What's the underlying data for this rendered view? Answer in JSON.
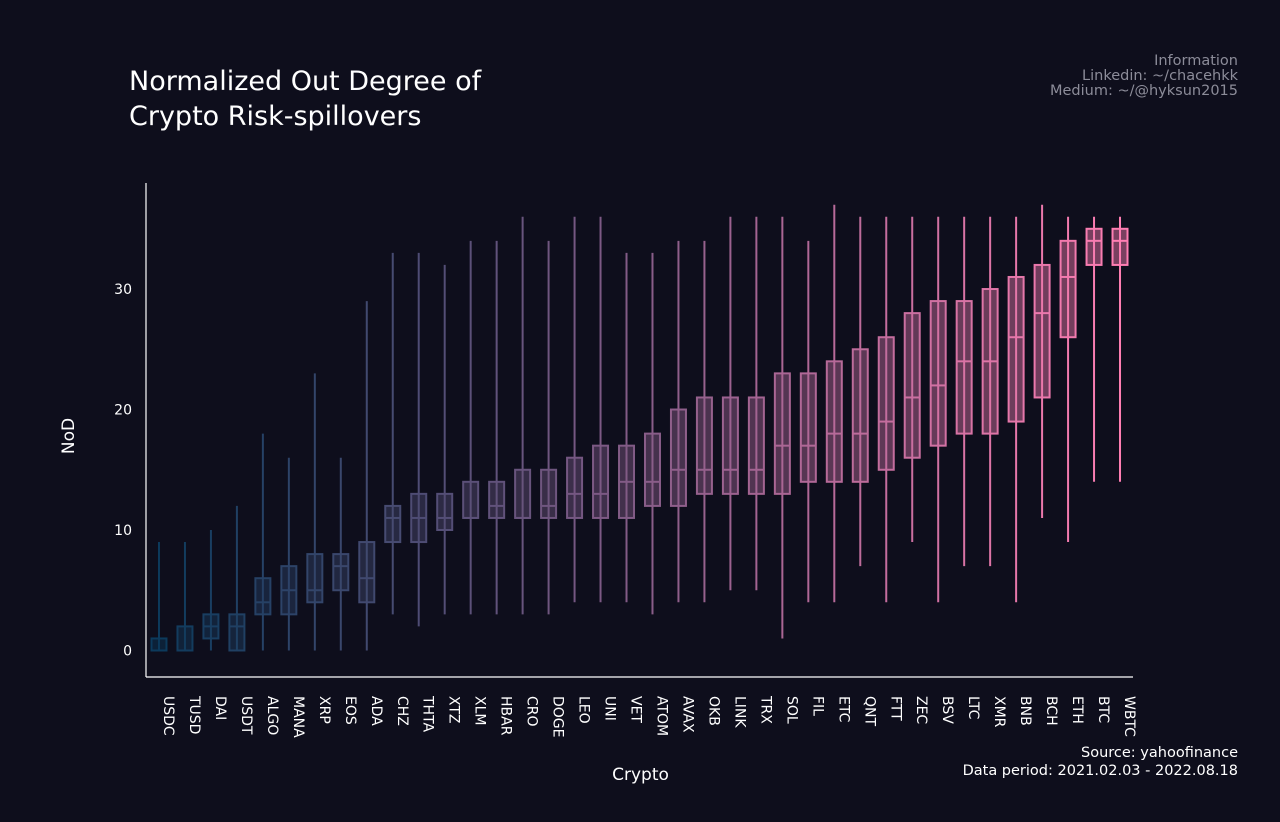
{
  "title_lines": [
    "Normalized Out Degree of",
    "Crypto Risk-spillovers"
  ],
  "info_lines": [
    "Information",
    "Linkedin: ~/chacehkk",
    "Medium: ~/@hyksun2015"
  ],
  "source_lines": [
    "Source: yahoofinance",
    "Data period: 2021.02.03 - 2022.08.18"
  ],
  "chart_data": {
    "type": "box",
    "title": "Normalized Out Degree of Crypto Risk-spillovers",
    "xlabel": "Crypto",
    "ylabel": "NoD",
    "ylim": [
      -2.2,
      38.8
    ],
    "yticks": [
      0,
      10,
      20,
      30
    ],
    "grid": false,
    "legend": "none",
    "colors": [
      "#0c3a5c",
      "#ff7eb3"
    ],
    "series": [
      {
        "name": "USDC",
        "min": 0,
        "q1": 0,
        "median": 0,
        "q3": 1,
        "max": 9
      },
      {
        "name": "TUSD",
        "min": 0,
        "q1": 0,
        "median": 0,
        "q3": 2,
        "max": 9
      },
      {
        "name": "DAI",
        "min": 0,
        "q1": 1,
        "median": 2,
        "q3": 3,
        "max": 10
      },
      {
        "name": "USDT",
        "min": 0,
        "q1": 0,
        "median": 2,
        "q3": 3,
        "max": 12
      },
      {
        "name": "ALGO",
        "min": 0,
        "q1": 3,
        "median": 4,
        "q3": 6,
        "max": 18
      },
      {
        "name": "MANA",
        "min": 0,
        "q1": 3,
        "median": 5,
        "q3": 7,
        "max": 16
      },
      {
        "name": "XRP",
        "min": 0,
        "q1": 4,
        "median": 5,
        "q3": 8,
        "max": 23
      },
      {
        "name": "EOS",
        "min": 0,
        "q1": 5,
        "median": 7,
        "q3": 8,
        "max": 16
      },
      {
        "name": "ADA",
        "min": 0,
        "q1": 4,
        "median": 6,
        "q3": 9,
        "max": 29
      },
      {
        "name": "CHZ",
        "min": 3,
        "q1": 9,
        "median": 11,
        "q3": 12,
        "max": 33
      },
      {
        "name": "THTA",
        "min": 2,
        "q1": 9,
        "median": 11,
        "q3": 13,
        "max": 33
      },
      {
        "name": "XTZ",
        "min": 3,
        "q1": 10,
        "median": 11,
        "q3": 13,
        "max": 32
      },
      {
        "name": "XLM",
        "min": 3,
        "q1": 11,
        "median": 11,
        "q3": 14,
        "max": 34
      },
      {
        "name": "HBAR",
        "min": 3,
        "q1": 11,
        "median": 12,
        "q3": 14,
        "max": 34
      },
      {
        "name": "CRO",
        "min": 3,
        "q1": 11,
        "median": 11,
        "q3": 15,
        "max": 36
      },
      {
        "name": "DOGE",
        "min": 3,
        "q1": 11,
        "median": 12,
        "q3": 15,
        "max": 34
      },
      {
        "name": "LEO",
        "min": 4,
        "q1": 11,
        "median": 13,
        "q3": 16,
        "max": 36
      },
      {
        "name": "UNI",
        "min": 4,
        "q1": 11,
        "median": 13,
        "q3": 17,
        "max": 36
      },
      {
        "name": "VET",
        "min": 4,
        "q1": 11,
        "median": 14,
        "q3": 17,
        "max": 33
      },
      {
        "name": "ATOM",
        "min": 3,
        "q1": 12,
        "median": 14,
        "q3": 18,
        "max": 33
      },
      {
        "name": "AVAX",
        "min": 4,
        "q1": 12,
        "median": 15,
        "q3": 20,
        "max": 34
      },
      {
        "name": "OKB",
        "min": 4,
        "q1": 13,
        "median": 15,
        "q3": 21,
        "max": 34
      },
      {
        "name": "LINK",
        "min": 5,
        "q1": 13,
        "median": 15,
        "q3": 21,
        "max": 36
      },
      {
        "name": "TRX",
        "min": 5,
        "q1": 13,
        "median": 15,
        "q3": 21,
        "max": 36
      },
      {
        "name": "SOL",
        "min": 1,
        "q1": 13,
        "median": 17,
        "q3": 23,
        "max": 36
      },
      {
        "name": "FIL",
        "min": 4,
        "q1": 14,
        "median": 17,
        "q3": 23,
        "max": 34
      },
      {
        "name": "ETC",
        "min": 4,
        "q1": 14,
        "median": 18,
        "q3": 24,
        "max": 37
      },
      {
        "name": "QNT",
        "min": 7,
        "q1": 14,
        "median": 18,
        "q3": 25,
        "max": 36
      },
      {
        "name": "FTT",
        "min": 4,
        "q1": 15,
        "median": 19,
        "q3": 26,
        "max": 36
      },
      {
        "name": "ZEC",
        "min": 9,
        "q1": 16,
        "median": 21,
        "q3": 28,
        "max": 36
      },
      {
        "name": "BSV",
        "min": 4,
        "q1": 17,
        "median": 22,
        "q3": 29,
        "max": 36
      },
      {
        "name": "LTC",
        "min": 7,
        "q1": 18,
        "median": 24,
        "q3": 29,
        "max": 36
      },
      {
        "name": "XMR",
        "min": 7,
        "q1": 18,
        "median": 24,
        "q3": 30,
        "max": 36
      },
      {
        "name": "BNB",
        "min": 4,
        "q1": 19,
        "median": 26,
        "q3": 31,
        "max": 36
      },
      {
        "name": "BCH",
        "min": 11,
        "q1": 21,
        "median": 28,
        "q3": 32,
        "max": 37
      },
      {
        "name": "ETH",
        "min": 9,
        "q1": 26,
        "median": 31,
        "q3": 34,
        "max": 36
      },
      {
        "name": "BTC",
        "min": 14,
        "q1": 32,
        "median": 34,
        "q3": 35,
        "max": 36
      },
      {
        "name": "WBTC",
        "min": 14,
        "q1": 32,
        "median": 34,
        "q3": 35,
        "max": 36
      }
    ]
  }
}
